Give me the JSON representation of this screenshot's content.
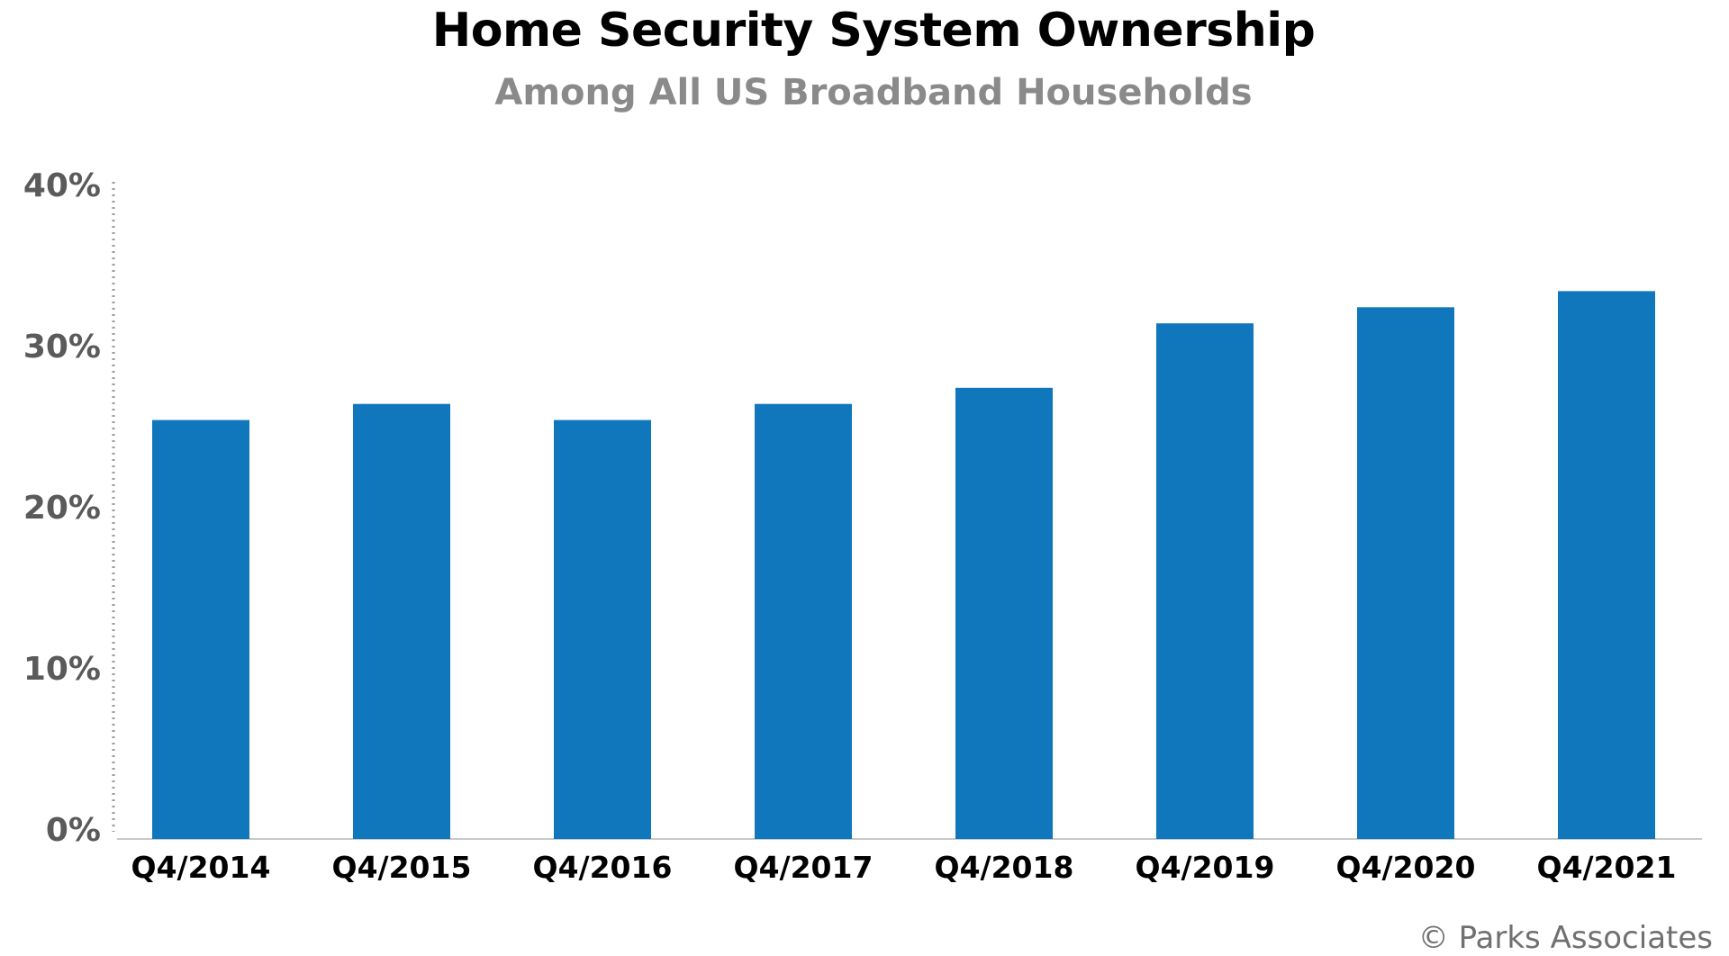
{
  "chart_data": {
    "type": "bar",
    "title": "Home Security System Ownership",
    "subtitle": "Among All US Broadband Households",
    "categories": [
      "Q4/2014",
      "Q4/2015",
      "Q4/2016",
      "Q4/2017",
      "Q4/2018",
      "Q4/2019",
      "Q4/2020",
      "Q4/2021"
    ],
    "values": [
      26,
      27,
      26,
      27,
      28,
      32,
      33,
      34
    ],
    "xlabel": "",
    "ylabel": "",
    "ylim": [
      0,
      40
    ],
    "yticks": [
      "0%",
      "10%",
      "20%",
      "30%",
      "40%"
    ],
    "grid": false,
    "bar_color": "#1177bd",
    "source": "© Parks Associates"
  }
}
